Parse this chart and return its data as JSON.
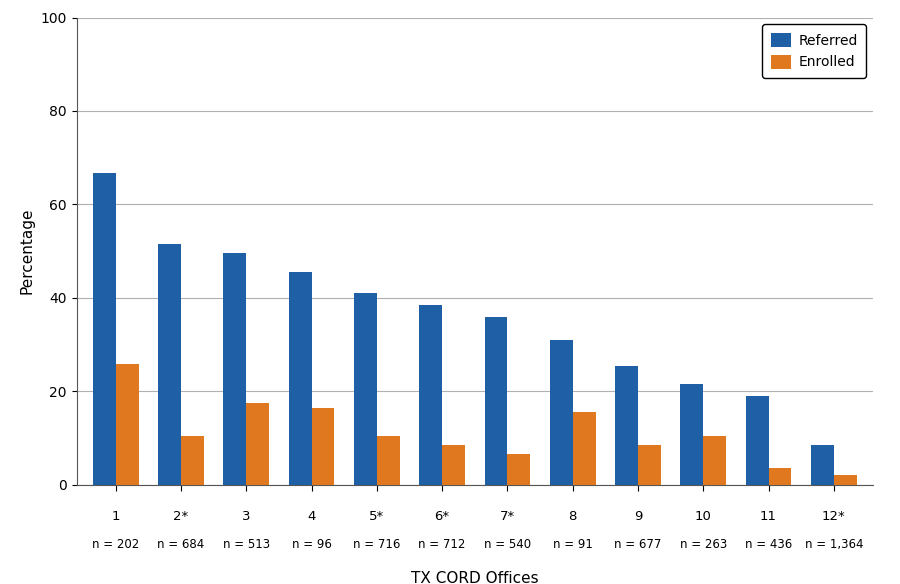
{
  "offices": [
    "1",
    "2*",
    "3",
    "4",
    "5*",
    "6*",
    "7*",
    "8",
    "9",
    "10",
    "11",
    "12*"
  ],
  "n_labels": [
    "n = 202",
    "n = 684",
    "n = 513",
    "n = 96",
    "n = 716",
    "n = 712",
    "n = 540",
    "n = 91",
    "n = 677",
    "n = 263",
    "n = 436",
    "n = 1,364"
  ],
  "referred": [
    66.8,
    51.5,
    49.7,
    45.5,
    41.0,
    38.5,
    36.0,
    31.0,
    25.5,
    21.5,
    19.0,
    8.5
  ],
  "enrolled": [
    25.8,
    10.5,
    17.5,
    16.5,
    10.5,
    8.5,
    6.5,
    15.5,
    8.5,
    10.5,
    3.5,
    2.0
  ],
  "referred_color": "#1F5FA6",
  "enrolled_color": "#E07820",
  "ylabel": "Percentage",
  "xlabel": "TX CORD Offices",
  "ylim": [
    0,
    100
  ],
  "yticks": [
    0,
    20,
    40,
    60,
    80,
    100
  ],
  "bar_width": 0.35,
  "legend_labels": [
    "Referred",
    "Enrolled"
  ],
  "background_color": "#ffffff",
  "grid_color": "#b0b0b0"
}
